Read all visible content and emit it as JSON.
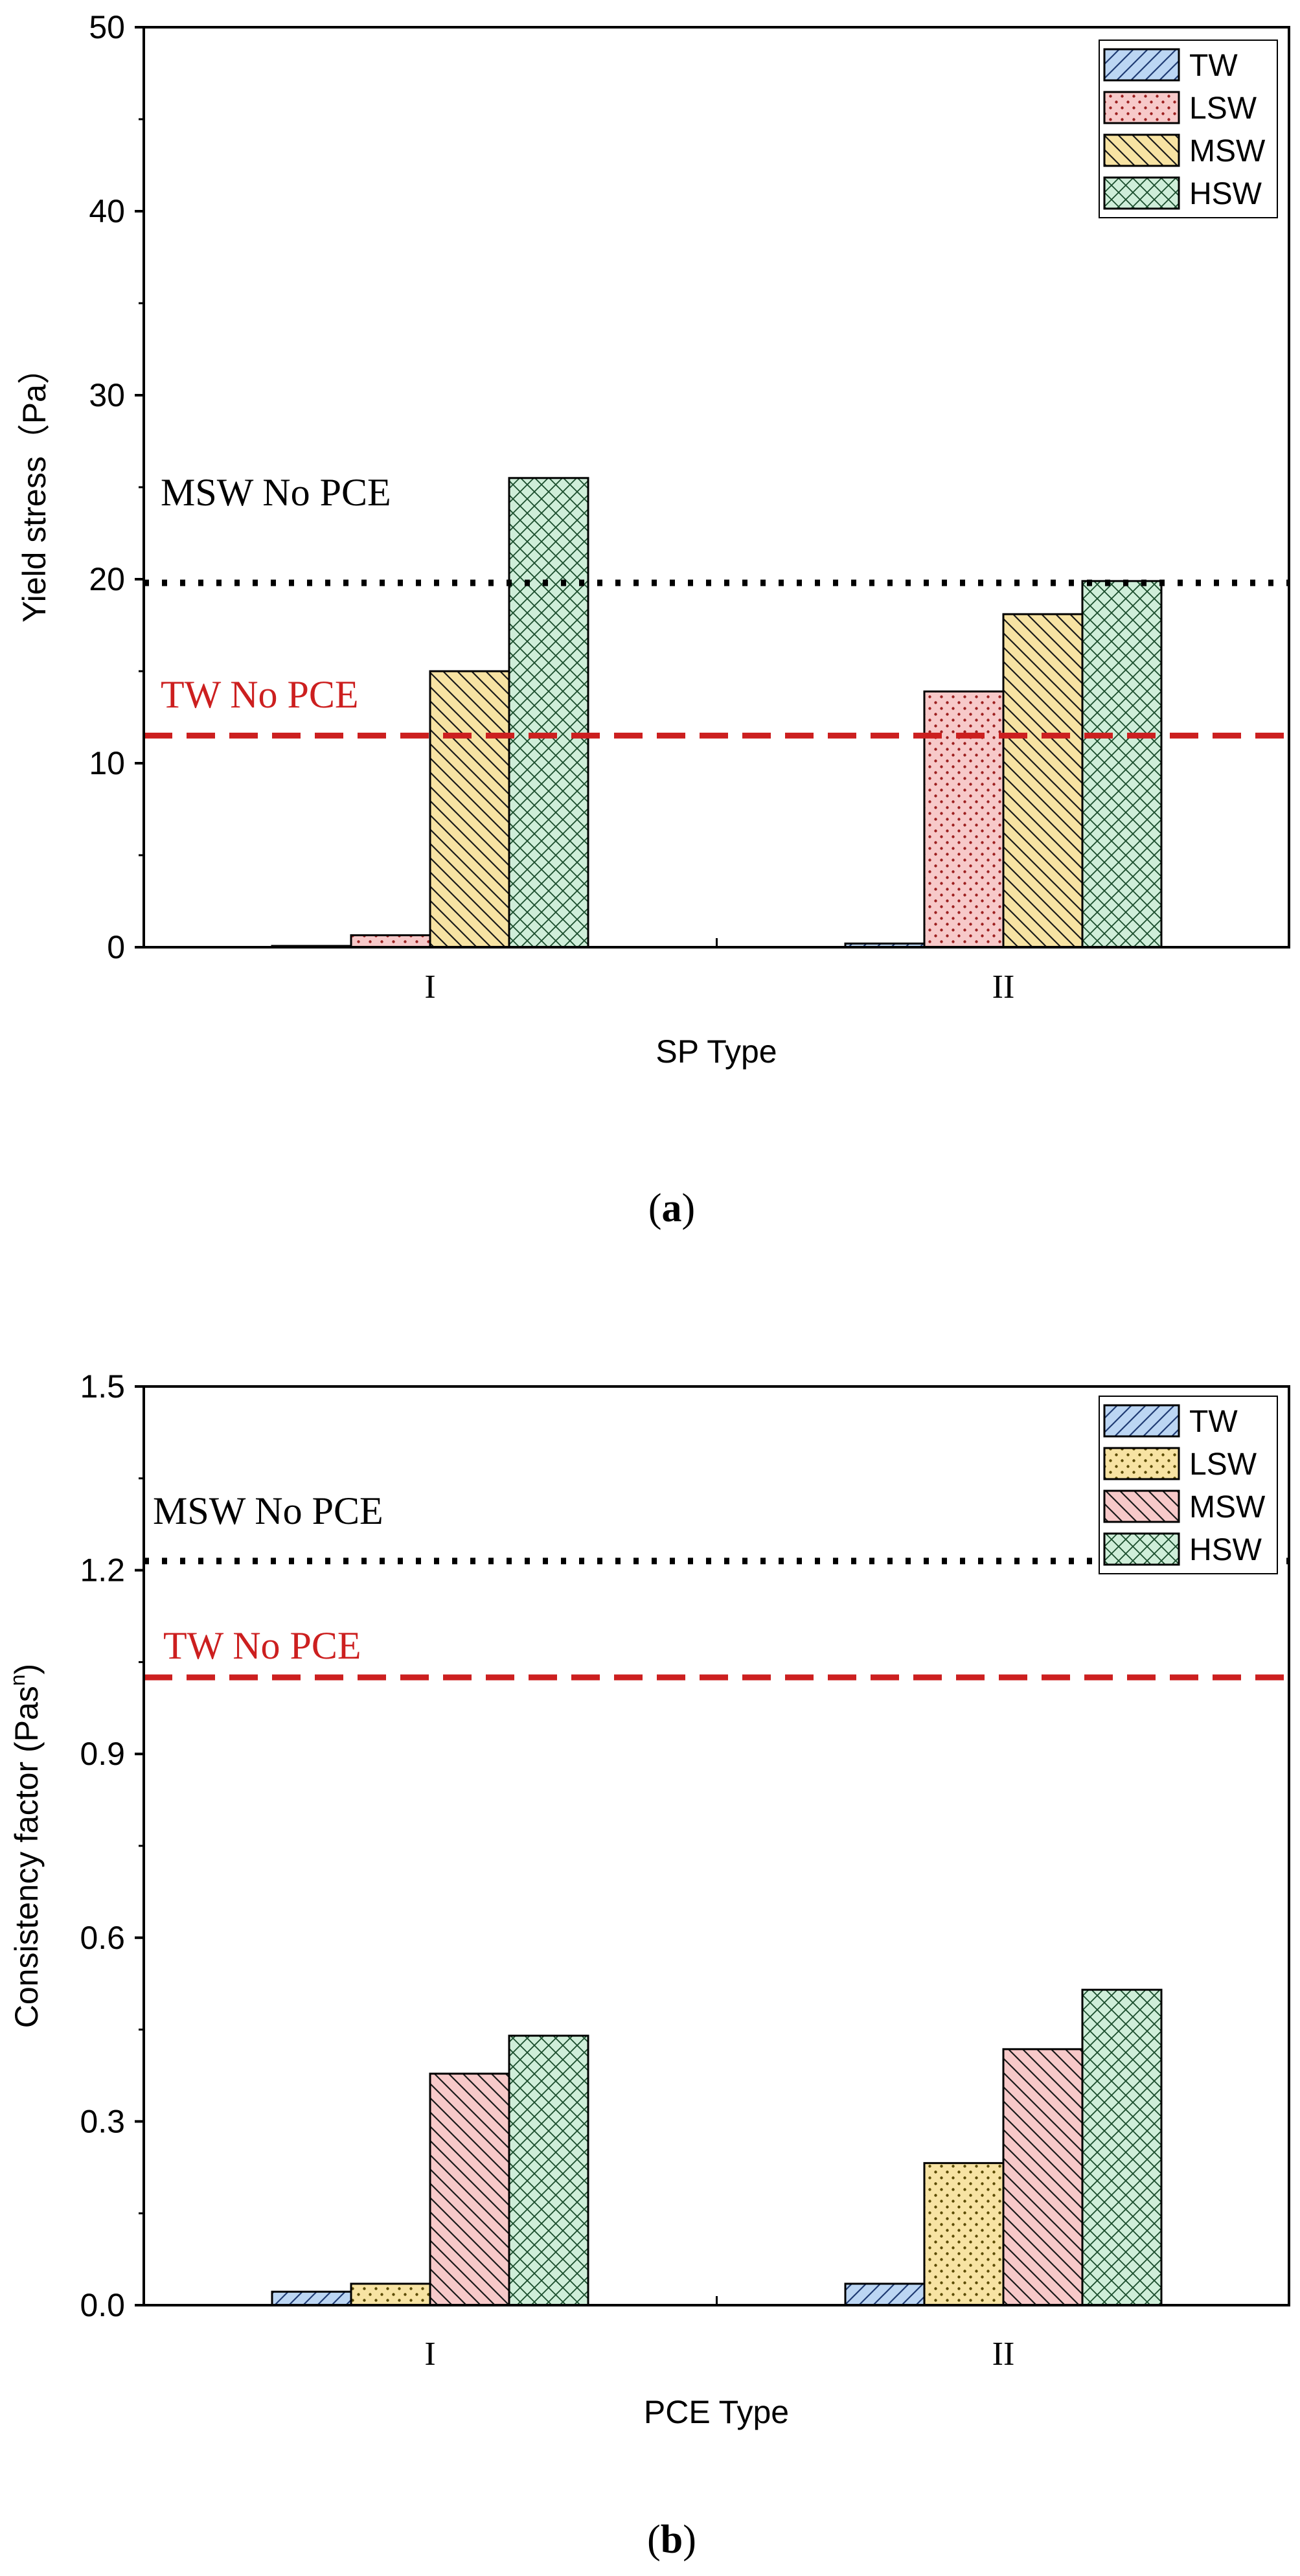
{
  "patterns": {
    "TW": {
      "fill": "#bcd6f3",
      "stroke": "#1f3b73",
      "pattern": "diagonal-forward"
    },
    "LSW_a": {
      "fill": "#f7c9c9",
      "stroke": "#9c1f1f",
      "pattern": "dots"
    },
    "MSW_a": {
      "fill": "#f7e3a3",
      "stroke": "#1a1a1a",
      "pattern": "diagonal-back"
    },
    "HSW": {
      "fill": "#cfeed9",
      "stroke": "#1a4d2c",
      "pattern": "crosshatch"
    },
    "LSW_b": {
      "fill": "#f7e3a3",
      "stroke": "#5a4a00",
      "pattern": "dots"
    },
    "MSW_b": {
      "fill": "#f7c9c9",
      "stroke": "#1a1a1a",
      "pattern": "diagonal-back"
    }
  },
  "colors": {
    "axis": "#000000",
    "ref_black": "#000000",
    "ref_red": "#cc1f1f"
  },
  "chart_data": [
    {
      "type": "bar",
      "panel_label": "a",
      "xlabel": "SP Type",
      "ylabel": "Yield stress（Pa）",
      "categories": [
        "I",
        "II"
      ],
      "ylim": [
        0,
        50
      ],
      "yticks": [
        0,
        10,
        20,
        30,
        40,
        50
      ],
      "ytick_labels": [
        "0",
        "10",
        "20",
        "30",
        "40",
        "50"
      ],
      "legend_position": "top-right",
      "series": [
        {
          "name": "TW",
          "pattern_key": "TW",
          "values": [
            0.05,
            0.2
          ]
        },
        {
          "name": "LSW",
          "pattern_key": "LSW_a",
          "values": [
            0.65,
            13.9
          ]
        },
        {
          "name": "MSW",
          "pattern_key": "MSW_a",
          "values": [
            15.0,
            18.1
          ]
        },
        {
          "name": "HSW",
          "pattern_key": "HSW",
          "values": [
            25.5,
            19.9
          ]
        }
      ],
      "reference_lines": [
        {
          "label": "MSW No PCE",
          "value": 19.8,
          "style": "dotted",
          "color_key": "ref_black"
        },
        {
          "label": "TW No PCE",
          "value": 11.5,
          "style": "dashed",
          "color_key": "ref_red"
        }
      ]
    },
    {
      "type": "bar",
      "panel_label": "b",
      "xlabel": "PCE Type",
      "ylabel": "Consistency factor (Pas",
      "ylabel_sup": "n",
      "ylabel_end": ")",
      "categories": [
        "I",
        "II"
      ],
      "ylim": [
        0,
        1.5
      ],
      "yticks": [
        0,
        0.3,
        0.6,
        0.9,
        1.2,
        1.5
      ],
      "ytick_labels": [
        "0.0",
        "0.3",
        "0.6",
        "0.9",
        "1.2",
        "1.5"
      ],
      "legend_position": "top-right",
      "series": [
        {
          "name": "TW",
          "pattern_key": "TW",
          "values": [
            0.022,
            0.035
          ]
        },
        {
          "name": "LSW",
          "pattern_key": "LSW_b",
          "values": [
            0.035,
            0.232
          ]
        },
        {
          "name": "MSW",
          "pattern_key": "MSW_b",
          "values": [
            0.378,
            0.418
          ]
        },
        {
          "name": "HSW",
          "pattern_key": "HSW",
          "values": [
            0.44,
            0.515
          ]
        }
      ],
      "reference_lines": [
        {
          "label": "MSW No PCE",
          "value": 1.215,
          "style": "dotted",
          "color_key": "ref_black"
        },
        {
          "label": "TW No PCE",
          "value": 1.025,
          "style": "dashed",
          "color_key": "ref_red"
        }
      ]
    }
  ]
}
